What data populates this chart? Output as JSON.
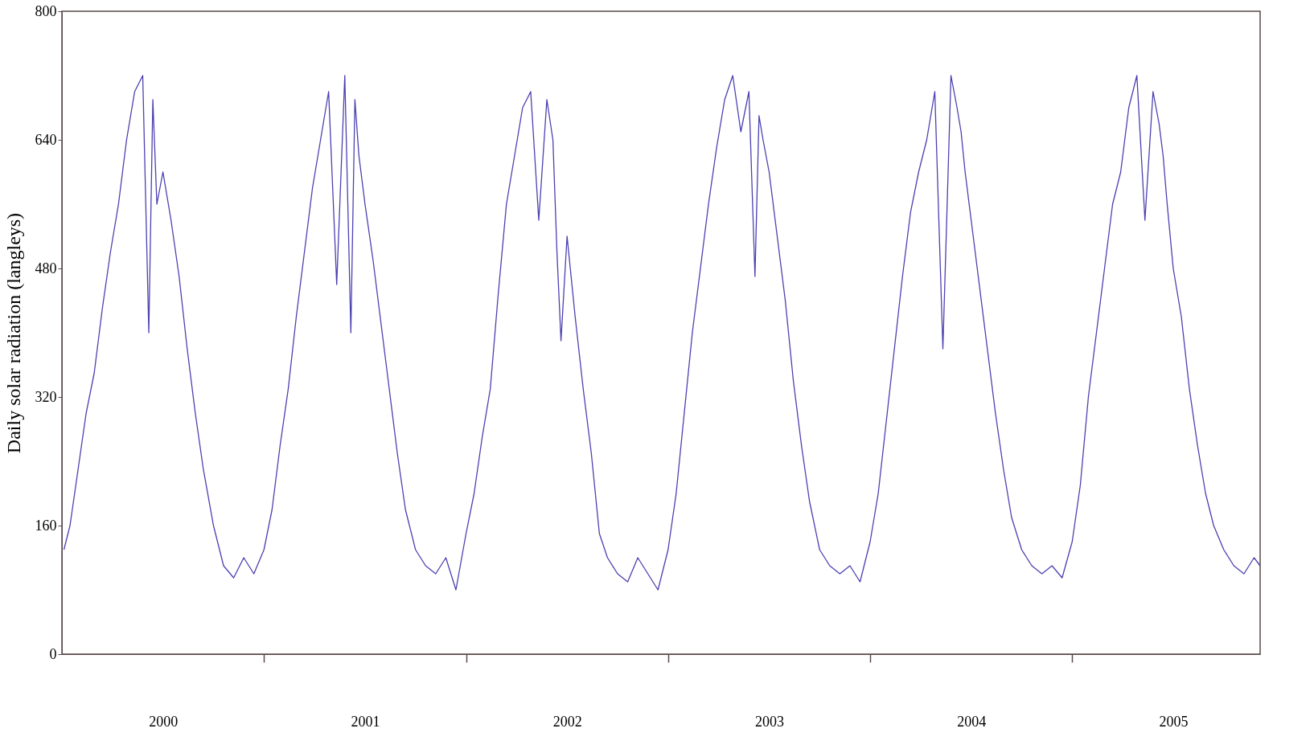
{
  "chart_data": {
    "type": "line",
    "ylabel": "Daily solar radiation (langleys)",
    "x": [
      2000.01,
      2000.04,
      2000.08,
      2000.12,
      2000.16,
      2000.2,
      2000.24,
      2000.28,
      2000.32,
      2000.36,
      2000.4,
      2000.43,
      2000.45,
      2000.47,
      2000.5,
      2000.54,
      2000.58,
      2000.62,
      2000.66,
      2000.7,
      2000.75,
      2000.8,
      2000.85,
      2000.9,
      2000.95,
      2001,
      2001.04,
      2001.08,
      2001.12,
      2001.16,
      2001.2,
      2001.24,
      2001.28,
      2001.32,
      2001.36,
      2001.4,
      2001.43,
      2001.45,
      2001.47,
      2001.5,
      2001.54,
      2001.58,
      2001.62,
      2001.66,
      2001.7,
      2001.75,
      2001.8,
      2001.85,
      2001.9,
      2001.95,
      2002,
      2002.04,
      2002.08,
      2002.12,
      2002.16,
      2002.2,
      2002.24,
      2002.28,
      2002.32,
      2002.36,
      2002.4,
      2002.43,
      2002.45,
      2002.47,
      2002.5,
      2002.54,
      2002.58,
      2002.62,
      2002.66,
      2002.7,
      2002.75,
      2002.8,
      2002.85,
      2002.9,
      2002.95,
      2003,
      2003.04,
      2003.08,
      2003.12,
      2003.16,
      2003.2,
      2003.24,
      2003.28,
      2003.32,
      2003.36,
      2003.4,
      2003.43,
      2003.45,
      2003.47,
      2003.5,
      2003.54,
      2003.58,
      2003.62,
      2003.66,
      2003.7,
      2003.75,
      2003.8,
      2003.85,
      2003.9,
      2003.95,
      2004,
      2004.04,
      2004.08,
      2004.12,
      2004.16,
      2004.2,
      2004.24,
      2004.28,
      2004.32,
      2004.36,
      2004.4,
      2004.43,
      2004.45,
      2004.47,
      2004.5,
      2004.54,
      2004.58,
      2004.62,
      2004.66,
      2004.7,
      2004.75,
      2004.8,
      2004.85,
      2004.9,
      2004.95,
      2005,
      2005.04,
      2005.08,
      2005.12,
      2005.16,
      2005.2,
      2005.24,
      2005.28,
      2005.32,
      2005.36,
      2005.4,
      2005.43,
      2005.45,
      2005.47,
      2005.5,
      2005.54,
      2005.58,
      2005.62,
      2005.66,
      2005.7,
      2005.75,
      2005.8,
      2005.85,
      2005.9,
      2005.93
    ],
    "values": [
      130,
      160,
      230,
      300,
      350,
      430,
      500,
      560,
      640,
      700,
      720,
      400,
      690,
      560,
      600,
      540,
      470,
      380,
      300,
      230,
      160,
      110,
      95,
      120,
      100,
      130,
      180,
      260,
      330,
      420,
      500,
      580,
      640,
      700,
      460,
      720,
      400,
      690,
      620,
      560,
      490,
      410,
      330,
      250,
      180,
      130,
      110,
      100,
      120,
      80,
      150,
      200,
      270,
      330,
      450,
      560,
      620,
      680,
      700,
      540,
      690,
      640,
      500,
      390,
      520,
      420,
      330,
      250,
      150,
      120,
      100,
      90,
      120,
      100,
      80,
      130,
      200,
      300,
      400,
      480,
      560,
      630,
      690,
      720,
      650,
      700,
      470,
      670,
      640,
      600,
      520,
      440,
      340,
      260,
      190,
      130,
      110,
      100,
      110,
      90,
      140,
      200,
      290,
      380,
      470,
      550,
      600,
      640,
      700,
      380,
      720,
      680,
      650,
      600,
      540,
      460,
      380,
      300,
      230,
      170,
      130,
      110,
      100,
      110,
      95,
      140,
      210,
      320,
      400,
      480,
      560,
      600,
      680,
      720,
      540,
      700,
      660,
      620,
      560,
      480,
      420,
      330,
      260,
      200,
      160,
      130,
      110,
      100,
      120,
      110
    ],
    "color": "#4b40b0",
    "xlim": [
      2000,
      2005.93
    ],
    "xticks": [
      {
        "value": 2000.5,
        "label": "2000"
      },
      {
        "value": 2001,
        "label": null
      },
      {
        "value": 2001.5,
        "label": "2001"
      },
      {
        "value": 2002,
        "label": null
      },
      {
        "value": 2002.5,
        "label": "2002"
      },
      {
        "value": 2003,
        "label": null
      },
      {
        "value": 2003.5,
        "label": "2003"
      },
      {
        "value": 2004,
        "label": null
      },
      {
        "value": 2004.5,
        "label": "2004"
      },
      {
        "value": 2005,
        "label": null
      },
      {
        "value": 2005.5,
        "label": "2005"
      }
    ],
    "ylim": [
      0,
      800
    ],
    "yticks": [
      0,
      160,
      320,
      480,
      640,
      800
    ],
    "grid": false,
    "marker": "none",
    "line_style": "solid"
  }
}
